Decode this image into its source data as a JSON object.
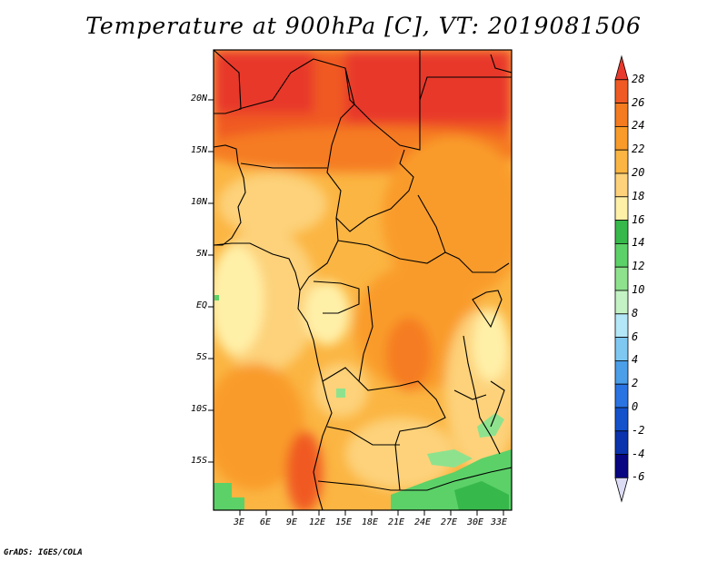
{
  "title": "Temperature at 900hPa [C], VT: 2019081506",
  "credit": "GrADS: IGES/COLA",
  "map": {
    "lat_labels": [
      "20N",
      "15N",
      "10N",
      "5N",
      "EQ",
      "5S",
      "10S",
      "15S"
    ],
    "lon_labels": [
      "3E",
      "6E",
      "9E",
      "12E",
      "15E",
      "18E",
      "21E",
      "24E",
      "27E",
      "30E",
      "33E"
    ],
    "lat_range": [
      -20,
      24.5
    ],
    "lon_range": [
      0,
      34
    ]
  },
  "colorbar": {
    "labels": [
      "28",
      "26",
      "24",
      "22",
      "20",
      "18",
      "16",
      "14",
      "12",
      "10",
      "8",
      "6",
      "4",
      "2",
      "0",
      "-2",
      "-4",
      "-6"
    ],
    "colors": [
      "#e8392c",
      "#f05a24",
      "#f57b20",
      "#f99b2a",
      "#fbb542",
      "#fdd27a",
      "#fff0a8",
      "#37b84b",
      "#5cd168",
      "#8ee28e",
      "#c4f2c4",
      "#b4e8f8",
      "#7ec8f2",
      "#4b9ee8",
      "#2a73e2",
      "#1452cc",
      "#0b33ad",
      "#080680",
      "#dcdcf5"
    ]
  }
}
